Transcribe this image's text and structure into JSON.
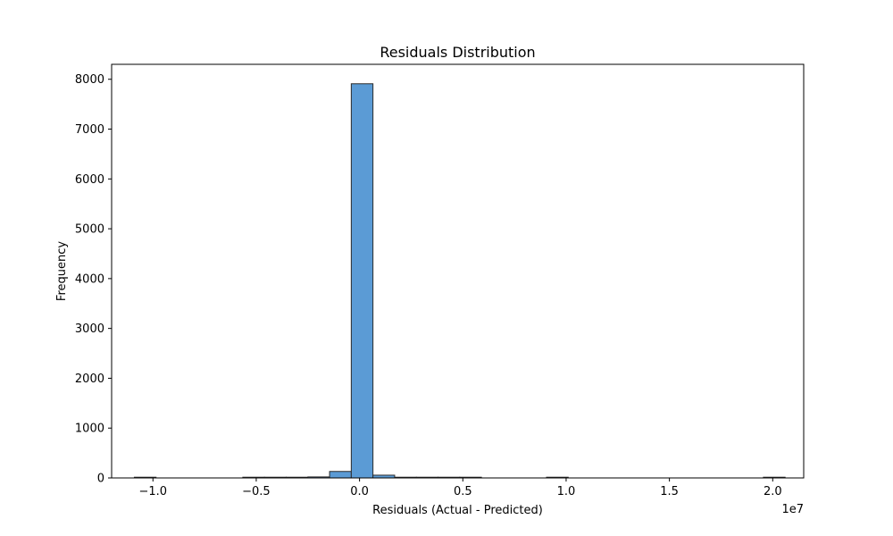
{
  "chart_data": {
    "type": "histogram",
    "title": "Residuals Distribution",
    "xlabel": "Residuals (Actual - Predicted)",
    "ylabel": "Frequency",
    "x_offset_label": "1e7",
    "xlim": [
      -1.2,
      2.15
    ],
    "ylim": [
      0,
      8300
    ],
    "x_ticks": [
      -1.0,
      -0.5,
      0.0,
      0.5,
      1.0,
      1.5,
      2.0
    ],
    "x_tick_labels": [
      "−1.0",
      "−0.5",
      "0.0",
      "0.5",
      "1.0",
      "1.5",
      "2.0"
    ],
    "y_ticks": [
      0,
      1000,
      2000,
      3000,
      4000,
      5000,
      6000,
      7000,
      8000
    ],
    "y_tick_labels": [
      "0",
      "1000",
      "2000",
      "3000",
      "4000",
      "5000",
      "6000",
      "7000",
      "8000"
    ],
    "bins": [
      {
        "x0": -1.09,
        "x1": -0.985,
        "count": 1
      },
      {
        "x0": -0.985,
        "x1": -0.88,
        "count": 0
      },
      {
        "x0": -0.88,
        "x1": -0.775,
        "count": 0
      },
      {
        "x0": -0.775,
        "x1": -0.67,
        "count": 0
      },
      {
        "x0": -0.67,
        "x1": -0.565,
        "count": 0
      },
      {
        "x0": -0.565,
        "x1": -0.46,
        "count": 1
      },
      {
        "x0": -0.46,
        "x1": -0.355,
        "count": 2
      },
      {
        "x0": -0.355,
        "x1": -0.25,
        "count": 3
      },
      {
        "x0": -0.25,
        "x1": -0.145,
        "count": 20
      },
      {
        "x0": -0.145,
        "x1": -0.04,
        "count": 130
      },
      {
        "x0": -0.04,
        "x1": 0.065,
        "count": 7910
      },
      {
        "x0": 0.065,
        "x1": 0.17,
        "count": 55
      },
      {
        "x0": 0.17,
        "x1": 0.275,
        "count": 10
      },
      {
        "x0": 0.275,
        "x1": 0.38,
        "count": 2
      },
      {
        "x0": 0.38,
        "x1": 0.485,
        "count": 1
      },
      {
        "x0": 0.485,
        "x1": 0.59,
        "count": 1
      },
      {
        "x0": 0.59,
        "x1": 0.695,
        "count": 0
      },
      {
        "x0": 0.695,
        "x1": 0.8,
        "count": 0
      },
      {
        "x0": 0.8,
        "x1": 0.905,
        "count": 0
      },
      {
        "x0": 0.905,
        "x1": 1.01,
        "count": 1
      },
      {
        "x0": 1.01,
        "x1": 1.115,
        "count": 0
      },
      {
        "x0": 1.115,
        "x1": 1.22,
        "count": 0
      },
      {
        "x0": 1.22,
        "x1": 1.325,
        "count": 0
      },
      {
        "x0": 1.325,
        "x1": 1.43,
        "count": 0
      },
      {
        "x0": 1.43,
        "x1": 1.535,
        "count": 0
      },
      {
        "x0": 1.535,
        "x1": 1.64,
        "count": 0
      },
      {
        "x0": 1.64,
        "x1": 1.745,
        "count": 0
      },
      {
        "x0": 1.745,
        "x1": 1.85,
        "count": 0
      },
      {
        "x0": 1.85,
        "x1": 1.955,
        "count": 0
      },
      {
        "x0": 1.955,
        "x1": 2.06,
        "count": 1
      }
    ],
    "bar_color": "#5b9bd5",
    "bar_edge_color": "#2b2b2b",
    "grid": false,
    "legend": "none"
  }
}
